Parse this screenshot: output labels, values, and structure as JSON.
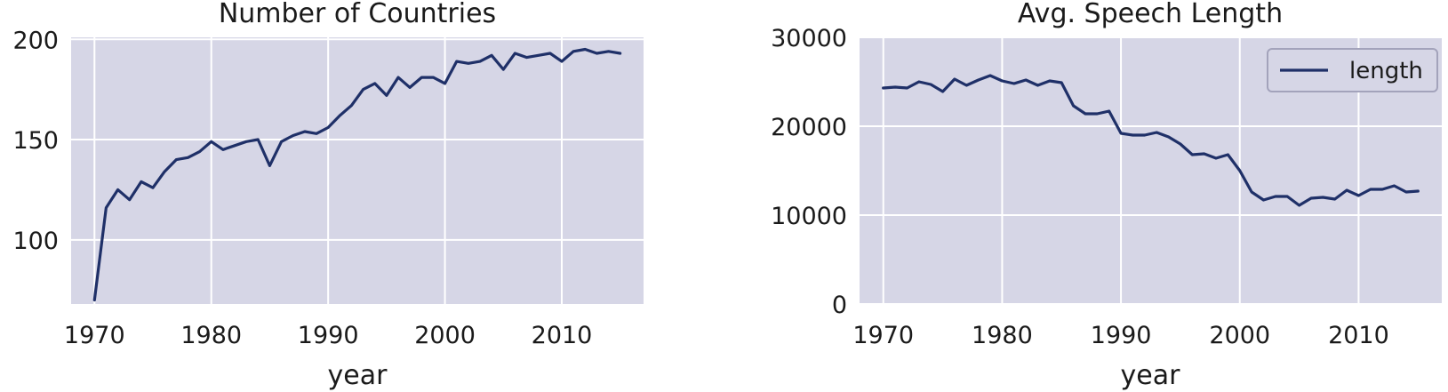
{
  "chart_data": [
    {
      "type": "line",
      "title": "Number of Countries",
      "xlabel": "year",
      "ylabel": "",
      "grid": true,
      "xlim": [
        1968,
        2017
      ],
      "ylim": [
        68,
        201
      ],
      "xticks": [
        "1970",
        "1980",
        "1990",
        "2000",
        "2010"
      ],
      "yticks": [
        "100",
        "150",
        "200"
      ],
      "legend": null,
      "color": "#1f3068",
      "series": [
        {
          "x": [
            1970,
            1971,
            1972,
            1973,
            1974,
            1975,
            1976,
            1977,
            1978,
            1979,
            1980,
            1981,
            1982,
            1983,
            1984,
            1985,
            1986,
            1987,
            1988,
            1989,
            1990,
            1991,
            1992,
            1993,
            1994,
            1995,
            1996,
            1997,
            1998,
            1999,
            2000,
            2001,
            2002,
            2003,
            2004,
            2005,
            2006,
            2007,
            2008,
            2009,
            2010,
            2011,
            2012,
            2013,
            2014,
            2015
          ],
          "values": [
            70,
            116,
            125,
            120,
            129,
            126,
            134,
            140,
            141,
            144,
            149,
            145,
            147,
            149,
            150,
            137,
            149,
            152,
            154,
            153,
            156,
            162,
            167,
            175,
            178,
            172,
            181,
            176,
            181,
            181,
            178,
            189,
            188,
            189,
            192,
            185,
            193,
            191,
            192,
            193,
            189,
            194,
            195,
            193,
            194,
            193
          ]
        }
      ]
    },
    {
      "type": "line",
      "title": "Avg. Speech Length",
      "xlabel": "year",
      "ylabel": "",
      "grid": true,
      "xlim": [
        1968,
        2017
      ],
      "ylim": [
        0,
        30000
      ],
      "xticks": [
        "1970",
        "1980",
        "1990",
        "2000",
        "2010"
      ],
      "yticks": [
        "0",
        "10000",
        "20000",
        "30000"
      ],
      "legend": "top-right",
      "color": "#1f3068",
      "series": [
        {
          "name": "length",
          "x": [
            1970,
            1971,
            1972,
            1973,
            1974,
            1975,
            1976,
            1977,
            1978,
            1979,
            1980,
            1981,
            1982,
            1983,
            1984,
            1985,
            1986,
            1987,
            1988,
            1989,
            1990,
            1991,
            1992,
            1993,
            1994,
            1995,
            1996,
            1997,
            1998,
            1999,
            2000,
            2001,
            2002,
            2003,
            2004,
            2005,
            2006,
            2007,
            2008,
            2009,
            2010,
            2011,
            2012,
            2013,
            2014,
            2015
          ],
          "values": [
            24300,
            24400,
            24300,
            25000,
            24700,
            23900,
            25300,
            24600,
            25200,
            25700,
            25100,
            24800,
            25200,
            24600,
            25100,
            24900,
            22300,
            21400,
            21400,
            21700,
            19200,
            19000,
            19000,
            19300,
            18800,
            18000,
            16800,
            16900,
            16400,
            16800,
            15000,
            12600,
            11700,
            12100,
            12100,
            11100,
            11900,
            12000,
            11800,
            12800,
            12200,
            12900,
            12900,
            13300,
            12600,
            12700
          ]
        }
      ]
    }
  ]
}
